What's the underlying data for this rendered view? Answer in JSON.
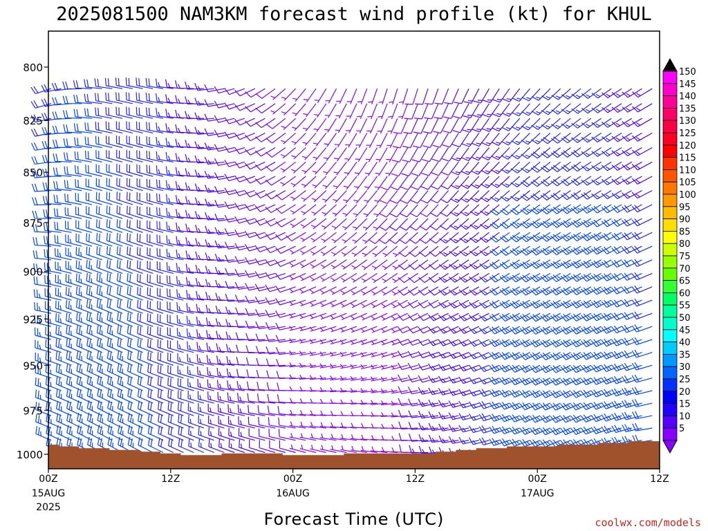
{
  "chart_data": {
    "type": "wind-barb",
    "title": "2025081500 NAM3KM forecast wind profile (kt) for KHUL",
    "xlabel": "Forecast Time (UTC)",
    "credit": "coolwx.com/models",
    "y_axis": {
      "reversed": true,
      "ticks": [
        800,
        825,
        850,
        875,
        900,
        925,
        950,
        975,
        1000
      ]
    },
    "x_axis": {
      "hours_range": [
        0,
        60
      ],
      "ticks": [
        {
          "hour": 0,
          "label": "00Z",
          "sub1": "15AUG",
          "sub2": "2025"
        },
        {
          "hour": 12,
          "label": "12Z",
          "sub1": "",
          "sub2": ""
        },
        {
          "hour": 24,
          "label": "00Z",
          "sub1": "16AUG",
          "sub2": ""
        },
        {
          "hour": 36,
          "label": "12Z",
          "sub1": "",
          "sub2": ""
        },
        {
          "hour": 48,
          "label": "00Z",
          "sub1": "17AUG",
          "sub2": ""
        },
        {
          "hour": 60,
          "label": "12Z",
          "sub1": "",
          "sub2": ""
        }
      ]
    },
    "colorbar": {
      "values": [
        150,
        145,
        140,
        135,
        130,
        125,
        120,
        115,
        110,
        105,
        100,
        95,
        90,
        85,
        80,
        75,
        70,
        65,
        60,
        55,
        50,
        45,
        40,
        35,
        30,
        25,
        20,
        15,
        10,
        5
      ],
      "colors": [
        "#ff00ff",
        "#ff00cc",
        "#ff0099",
        "#ff0066",
        "#ff0044",
        "#ff0022",
        "#ff0000",
        "#ff3300",
        "#ff5500",
        "#ff7700",
        "#ff9900",
        "#ffbb00",
        "#ffdd00",
        "#ffff00",
        "#ccff00",
        "#99ff00",
        "#66ff00",
        "#33ff33",
        "#00ff66",
        "#00ff99",
        "#00ffcc",
        "#00ffff",
        "#00ccff",
        "#0099ff",
        "#0066ff",
        "#0033ff",
        "#0000ff",
        "#2200ff",
        "#5500ff",
        "#8800ff"
      ],
      "top_arrow_color": "#000000",
      "bottom_arrow_color": "#8800ff"
    },
    "barb_grid": {
      "hour_step": 1,
      "pressure_top": 810,
      "pressure_bottom": 1000,
      "pressure_step": 7
    },
    "terrain": {
      "color": "#a0522d",
      "surface_pressure_by_hour": [
        [
          0,
          994.5
        ],
        [
          1,
          995.5
        ],
        [
          3,
          996.5
        ],
        [
          6,
          997.5
        ],
        [
          9,
          998.5
        ],
        [
          11,
          999.5
        ],
        [
          13,
          1000.5
        ],
        [
          17,
          999.5
        ],
        [
          23,
          1000.5
        ],
        [
          29,
          999.5
        ],
        [
          34,
          999.5
        ],
        [
          38,
          998.5
        ],
        [
          40,
          997.5
        ],
        [
          42,
          996.5
        ],
        [
          45,
          995.5
        ],
        [
          50,
          994.5
        ],
        [
          54,
          993.5
        ],
        [
          57,
          992.5
        ],
        [
          60,
          992
        ]
      ]
    }
  }
}
